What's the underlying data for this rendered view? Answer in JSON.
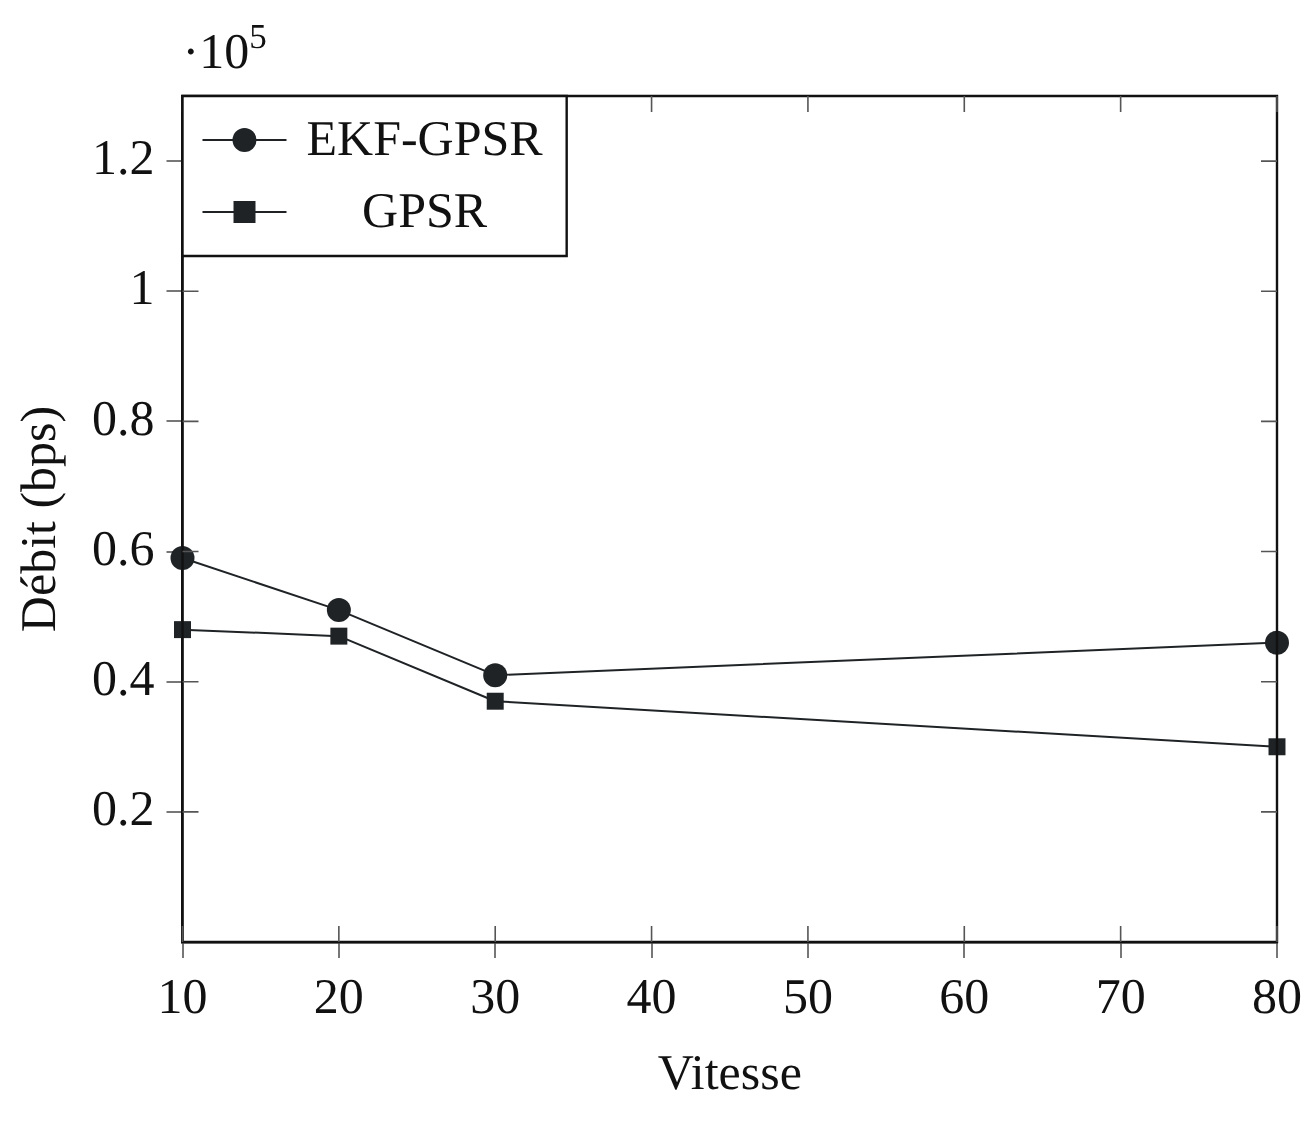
{
  "chart_data": {
    "type": "line",
    "xlabel": "Vitesse",
    "ylabel": "Débit (bps)",
    "annotations": [
      "·10$^{5}$"
    ],
    "x": [
      10,
      20,
      30,
      80
    ],
    "series": [
      {
        "name": "EKF-GPSR",
        "color": "#1f2326",
        "values": [
          0.59,
          0.51,
          0.41,
          0.46
        ],
        "marker": "circle"
      },
      {
        "name": "GPSR",
        "color": "#1f2326",
        "values": [
          0.48,
          0.47,
          0.37,
          0.3
        ],
        "marker": "square"
      }
    ],
    "xlim": [
      10,
      80
    ],
    "xticks": [
      10,
      20,
      30,
      40,
      50,
      60,
      70,
      80
    ],
    "ylim": [
      0,
      1.3
    ],
    "yticks": [
      0.2,
      0.4,
      0.6,
      0.8,
      1,
      1.2
    ],
    "grid": false,
    "legend": "top left",
    "line_style": "solid"
  }
}
